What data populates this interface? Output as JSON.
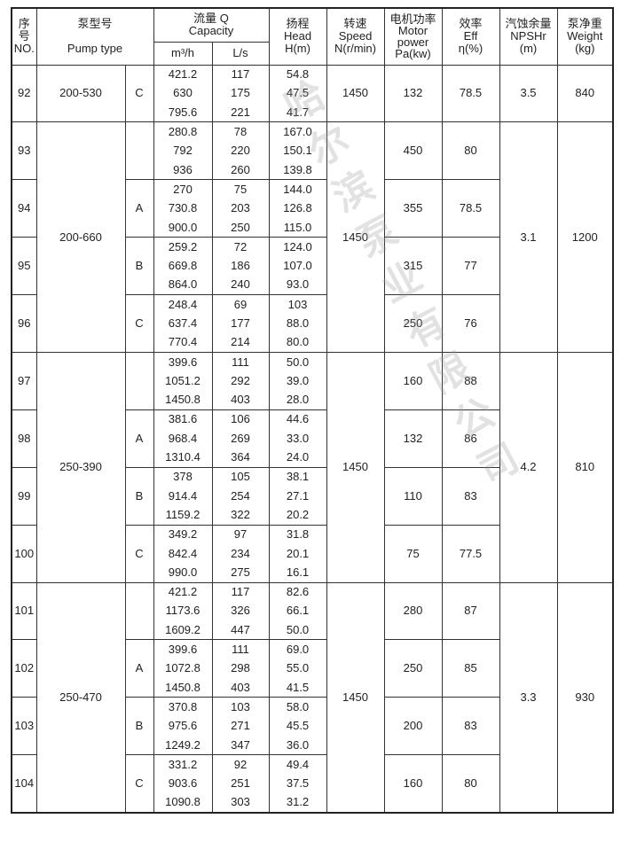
{
  "header": {
    "no": [
      "序",
      "号",
      "NO."
    ],
    "pump_type": [
      "泵型号",
      "Pump type"
    ],
    "capacity": [
      "流量 Q",
      "Capacity"
    ],
    "capacity_units": [
      "m³/h",
      "L/s"
    ],
    "head": [
      "扬程",
      "Head",
      "H(m)"
    ],
    "speed": [
      "转速",
      "Speed",
      "N(r/min)"
    ],
    "power": [
      "电机功率",
      "Motor",
      "power",
      "Pa(kw)"
    ],
    "eff": [
      "效率",
      "Eff",
      "η(%)"
    ],
    "npshr": [
      "汽蚀余量",
      "NPSHr",
      "(m)"
    ],
    "weight": [
      "泵净重",
      "Weight",
      "(kg)"
    ]
  },
  "watermark": "哈尔滨泵业有限公司",
  "groups": [
    {
      "type": "200-530",
      "speed": "1450",
      "npshr": "3.5",
      "weight": "840",
      "rows": [
        {
          "no": "92",
          "variant": "C",
          "power": "132",
          "eff": "78.5",
          "points": [
            [
              "421.2",
              "117",
              "54.8"
            ],
            [
              "630",
              "175",
              "47.5"
            ],
            [
              "795.6",
              "221",
              "41.7"
            ]
          ]
        }
      ]
    },
    {
      "type": "200-660",
      "speed": "1450",
      "npshr": "3.1",
      "weight": "1200",
      "rows": [
        {
          "no": "93",
          "variant": "",
          "power": "450",
          "eff": "80",
          "points": [
            [
              "280.8",
              "78",
              "167.0"
            ],
            [
              "792",
              "220",
              "150.1"
            ],
            [
              "936",
              "260",
              "139.8"
            ]
          ]
        },
        {
          "no": "94",
          "variant": "A",
          "power": "355",
          "eff": "78.5",
          "points": [
            [
              "270",
              "75",
              "144.0"
            ],
            [
              "730.8",
              "203",
              "126.8"
            ],
            [
              "900.0",
              "250",
              "115.0"
            ]
          ]
        },
        {
          "no": "95",
          "variant": "B",
          "power": "315",
          "eff": "77",
          "points": [
            [
              "259.2",
              "72",
              "124.0"
            ],
            [
              "669.8",
              "186",
              "107.0"
            ],
            [
              "864.0",
              "240",
              "93.0"
            ]
          ]
        },
        {
          "no": "96",
          "variant": "C",
          "power": "250",
          "eff": "76",
          "points": [
            [
              "248.4",
              "69",
              "103"
            ],
            [
              "637.4",
              "177",
              "88.0"
            ],
            [
              "770.4",
              "214",
              "80.0"
            ]
          ]
        }
      ]
    },
    {
      "type": "250-390",
      "speed": "1450",
      "npshr": "4.2",
      "weight": "810",
      "rows": [
        {
          "no": "97",
          "variant": "",
          "power": "160",
          "eff": "88",
          "points": [
            [
              "399.6",
              "111",
              "50.0"
            ],
            [
              "1051.2",
              "292",
              "39.0"
            ],
            [
              "1450.8",
              "403",
              "28.0"
            ]
          ]
        },
        {
          "no": "98",
          "variant": "A",
          "power": "132",
          "eff": "86",
          "points": [
            [
              "381.6",
              "106",
              "44.6"
            ],
            [
              "968.4",
              "269",
              "33.0"
            ],
            [
              "1310.4",
              "364",
              "24.0"
            ]
          ]
        },
        {
          "no": "99",
          "variant": "B",
          "power": "110",
          "eff": "83",
          "points": [
            [
              "378",
              "105",
              "38.1"
            ],
            [
              "914.4",
              "254",
              "27.1"
            ],
            [
              "1159.2",
              "322",
              "20.2"
            ]
          ]
        },
        {
          "no": "100",
          "variant": "C",
          "power": "75",
          "eff": "77.5",
          "points": [
            [
              "349.2",
              "97",
              "31.8"
            ],
            [
              "842.4",
              "234",
              "20.1"
            ],
            [
              "990.0",
              "275",
              "16.1"
            ]
          ]
        }
      ]
    },
    {
      "type": "250-470",
      "speed": "1450",
      "npshr": "3.3",
      "weight": "930",
      "rows": [
        {
          "no": "101",
          "variant": "",
          "power": "280",
          "eff": "87",
          "points": [
            [
              "421.2",
              "117",
              "82.6"
            ],
            [
              "1173.6",
              "326",
              "66.1"
            ],
            [
              "1609.2",
              "447",
              "50.0"
            ]
          ]
        },
        {
          "no": "102",
          "variant": "A",
          "power": "250",
          "eff": "85",
          "points": [
            [
              "399.6",
              "111",
              "69.0"
            ],
            [
              "1072.8",
              "298",
              "55.0"
            ],
            [
              "1450.8",
              "403",
              "41.5"
            ]
          ]
        },
        {
          "no": "103",
          "variant": "B",
          "power": "200",
          "eff": "83",
          "points": [
            [
              "370.8",
              "103",
              "58.0"
            ],
            [
              "975.6",
              "271",
              "45.5"
            ],
            [
              "1249.2",
              "347",
              "36.0"
            ]
          ]
        },
        {
          "no": "104",
          "variant": "C",
          "power": "160",
          "eff": "80",
          "points": [
            [
              "331.2",
              "92",
              "49.4"
            ],
            [
              "903.6",
              "251",
              "37.5"
            ],
            [
              "1090.8",
              "303",
              "31.2"
            ]
          ]
        }
      ]
    }
  ]
}
